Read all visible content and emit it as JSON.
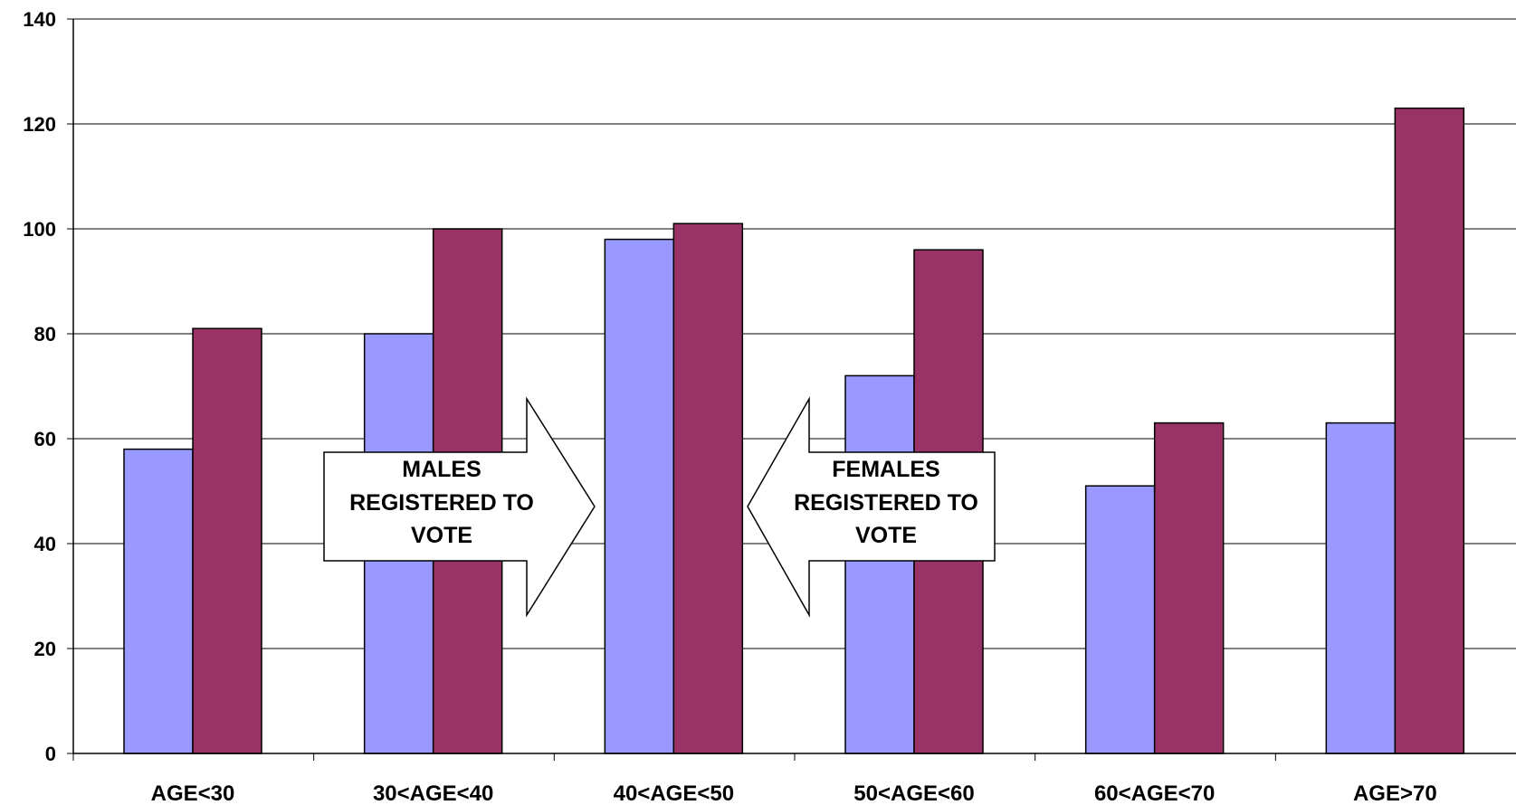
{
  "chart_data": {
    "type": "bar",
    "title": "",
    "xlabel": "",
    "ylabel": "",
    "categories": [
      "AGE<30",
      "30<AGE<40",
      "40<AGE<50",
      "50<AGE<60",
      "60<AGE<70",
      "AGE>70"
    ],
    "series": [
      {
        "values": [
          58,
          80,
          98,
          72,
          51,
          63
        ],
        "color": "#9999ff"
      },
      {
        "values": [
          81,
          100,
          101,
          96,
          63,
          123
        ],
        "color": "#993366"
      }
    ],
    "ylim": [
      0,
      140
    ],
    "yticks": [
      0,
      20,
      40,
      60,
      80,
      100,
      120,
      140
    ],
    "grid": true,
    "legend": "none",
    "annotations": [
      {
        "direction": "right",
        "lines": [
          "MALES",
          "REGISTERED TO",
          "VOTE"
        ]
      },
      {
        "direction": "left",
        "lines": [
          "FEMALES",
          "REGISTERED TO",
          "VOTE"
        ]
      }
    ]
  }
}
